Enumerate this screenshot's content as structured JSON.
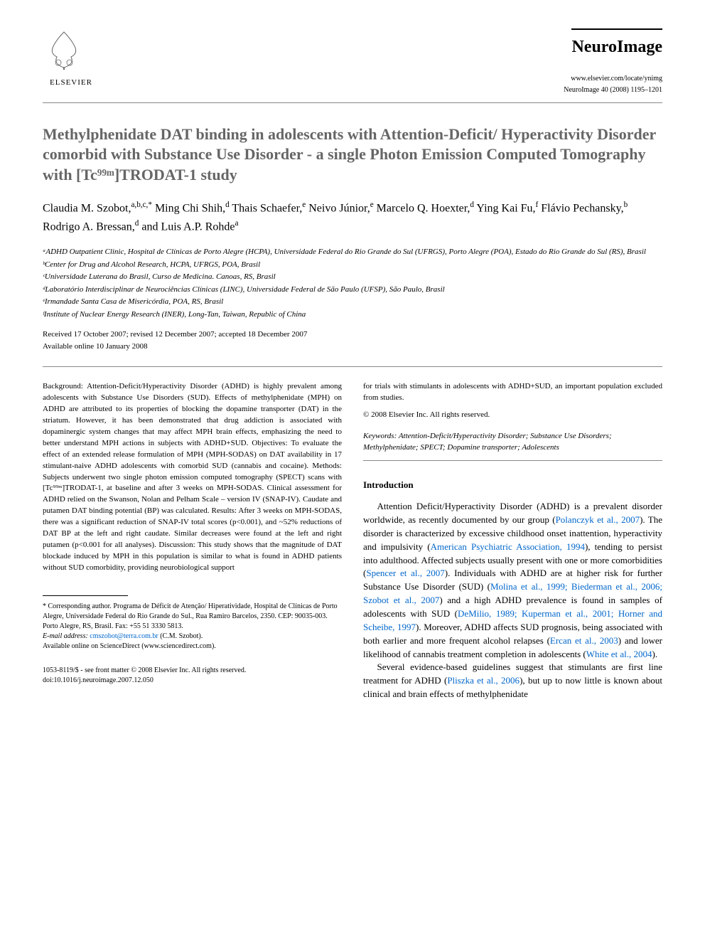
{
  "header": {
    "publisher": "ELSEVIER",
    "journal_name": "NeuroImage",
    "journal_url": "www.elsevier.com/locate/ynimg",
    "journal_ref": "NeuroImage 40 (2008) 1195–1201"
  },
  "title": "Methylphenidate DAT binding in adolescents with Attention-Deficit/ Hyperactivity Disorder comorbid with Substance Use Disorder - a single Photon Emission Computed Tomography with [Tc⁹⁹ᵐ]TRODAT-1 study",
  "authors_html": "Claudia M. Szobot,<sup>a,b,c,*</sup> Ming Chi Shih,<sup>d</sup> Thais Schaefer,<sup>e</sup> Neivo Júnior,<sup>e</sup> Marcelo Q. Hoexter,<sup>d</sup> Ying Kai Fu,<sup>f</sup> Flávio Pechansky,<sup>b</sup> Rodrigo A. Bressan,<sup>d</sup> and Luis A.P. Rohde<sup>a</sup>",
  "affiliations": [
    "ᵃADHD Outpatient Clinic, Hospital de Clínicas de Porto Alegre (HCPA), Universidade Federal do Rio Grande do Sul (UFRGS), Porto Alegre (POA), Estado do Rio Grande do Sul (RS), Brasil",
    "ᵇCenter for Drug and Alcohol Research, HCPA, UFRGS, POA, Brasil",
    "ᶜUniversidade Luterana do Brasil, Curso de Medicina. Canoas, RS, Brasil",
    "ᵈLaboratório Interdisciplinar de Neurociências Clínicas (LINC), Universidade Federal de São Paulo (UFSP), São Paulo, Brasil",
    "ᵉIrmandade Santa Casa de Misericórdia, POA, RS, Brasil",
    "ᶠInstitute of Nuclear Energy Research (INER), Long-Tan, Taiwan, Republic of China"
  ],
  "dates": {
    "received": "Received 17 October 2007; revised 12 December 2007; accepted 18 December 2007",
    "available": "Available online 10 January 2008"
  },
  "abstract": {
    "left": "Background: Attention-Deficit/Hyperactivity Disorder (ADHD) is highly prevalent among adolescents with Substance Use Disorders (SUD). Effects of methylphenidate (MPH) on ADHD are attributed to its properties of blocking the dopamine transporter (DAT) in the striatum. However, it has been demonstrated that drug addiction is associated with dopaminergic system changes that may affect MPH brain effects, emphasizing the need to better understand MPH actions in subjects with ADHD+SUD. Objectives: To evaluate the effect of an extended release formulation of MPH (MPH-SODAS) on DAT availability in 17 stimulant-naive ADHD adolescents with comorbid SUD (cannabis and cocaine). Methods: Subjects underwent two single photon emission computed tomography (SPECT) scans with [Tc⁹⁹ᵐ]TRODAT-1, at baseline and after 3 weeks on MPH-SODAS. Clinical assessment for ADHD relied on the Swanson, Nolan and Pelham Scale – version IV (SNAP-IV). Caudate and putamen DAT binding potential (BP) was calculated. Results: After 3 weeks on MPH-SODAS, there was a significant reduction of SNAP-IV total scores (p<0.001), and ~52% reductions of DAT BP at the left and right caudate. Similar decreases were found at the left and right putamen (p<0.001 for all analyses). Discussion: This study shows that the magnitude of DAT blockade induced by MPH in this population is similar to what is found in ADHD patients without SUD comorbidity, providing neurobiological support",
    "right_top": "for trials with stimulants in adolescents with ADHD+SUD, an important population excluded from studies.",
    "copyright": "© 2008 Elsevier Inc. All rights reserved.",
    "keywords_label": "Keywords:",
    "keywords": "Attention-Deficit/Hyperactivity Disorder; Substance Use Disorders; Methylphenidate; SPECT; Dopamine transporter; Adolescents"
  },
  "intro": {
    "heading": "Introduction",
    "p1_pre": "Attention Deficit/Hyperactivity Disorder (ADHD) is a prevalent disorder worldwide, as recently documented by our group (",
    "p1_link1": "Polanczyk et al., 2007",
    "p1_mid1": "). The disorder is characterized by excessive childhood onset inattention, hyperactivity and impulsivity (",
    "p1_link2": "American Psychiatric Association, 1994",
    "p1_mid2": "), tending to persist into adulthood. Affected subjects usually present with one or more comorbidities (",
    "p1_link3": "Spencer et al., 2007",
    "p1_mid3": "). Individuals with ADHD are at higher risk for further Substance Use Disorder (SUD) (",
    "p1_link4": "Molina et al., 1999; Biederman et al., 2006; Szobot et al., 2007",
    "p1_mid4": ") and a high ADHD prevalence is found in samples of adolescents with SUD (",
    "p1_link5": "DeMilio, 1989; Kuperman et al., 2001; Horner and Scheibe, 1997",
    "p1_mid5": "). Moreover, ADHD affects SUD prognosis, being associated with both earlier and more frequent alcohol relapses (",
    "p1_link6": "Ercan et al., 2003",
    "p1_mid6": ") and lower likelihood of cannabis treatment completion in adolescents (",
    "p1_link7": "White et al., 2004",
    "p1_end": ").",
    "p2_pre": "Several evidence-based guidelines suggest that stimulants are first line treatment for ADHD (",
    "p2_link1": "Pliszka et al., 2006",
    "p2_end": "), but up to now little is known about clinical and brain effects of methylphenidate"
  },
  "footnote": {
    "corr": "* Corresponding author. Programa de Déficit de Atenção/ Hiperatividade, Hospital de Clínicas de Porto Alegre, Universidade Federal do Rio Grande do Sul., Rua Ramiro Barcelos, 2350. CEP: 90035-003. Porto Alegre, RS, Brasil. Fax: +55 51 3330 5813.",
    "email_label": "E-mail address:",
    "email": "cmszobot@terra.com.br",
    "email_suffix": "(C.M. Szobot).",
    "sciencedirect": "Available online on ScienceDirect (www.sciencedirect.com)."
  },
  "bottom": {
    "left1": "1053-8119/$ - see front matter © 2008 Elsevier Inc. All rights reserved.",
    "left2": "doi:10.1016/j.neuroimage.2007.12.050"
  },
  "colors": {
    "title_color": "#666666",
    "link_color": "#0066cc",
    "text_color": "#000000",
    "background": "#ffffff",
    "rule_color": "#888888"
  }
}
